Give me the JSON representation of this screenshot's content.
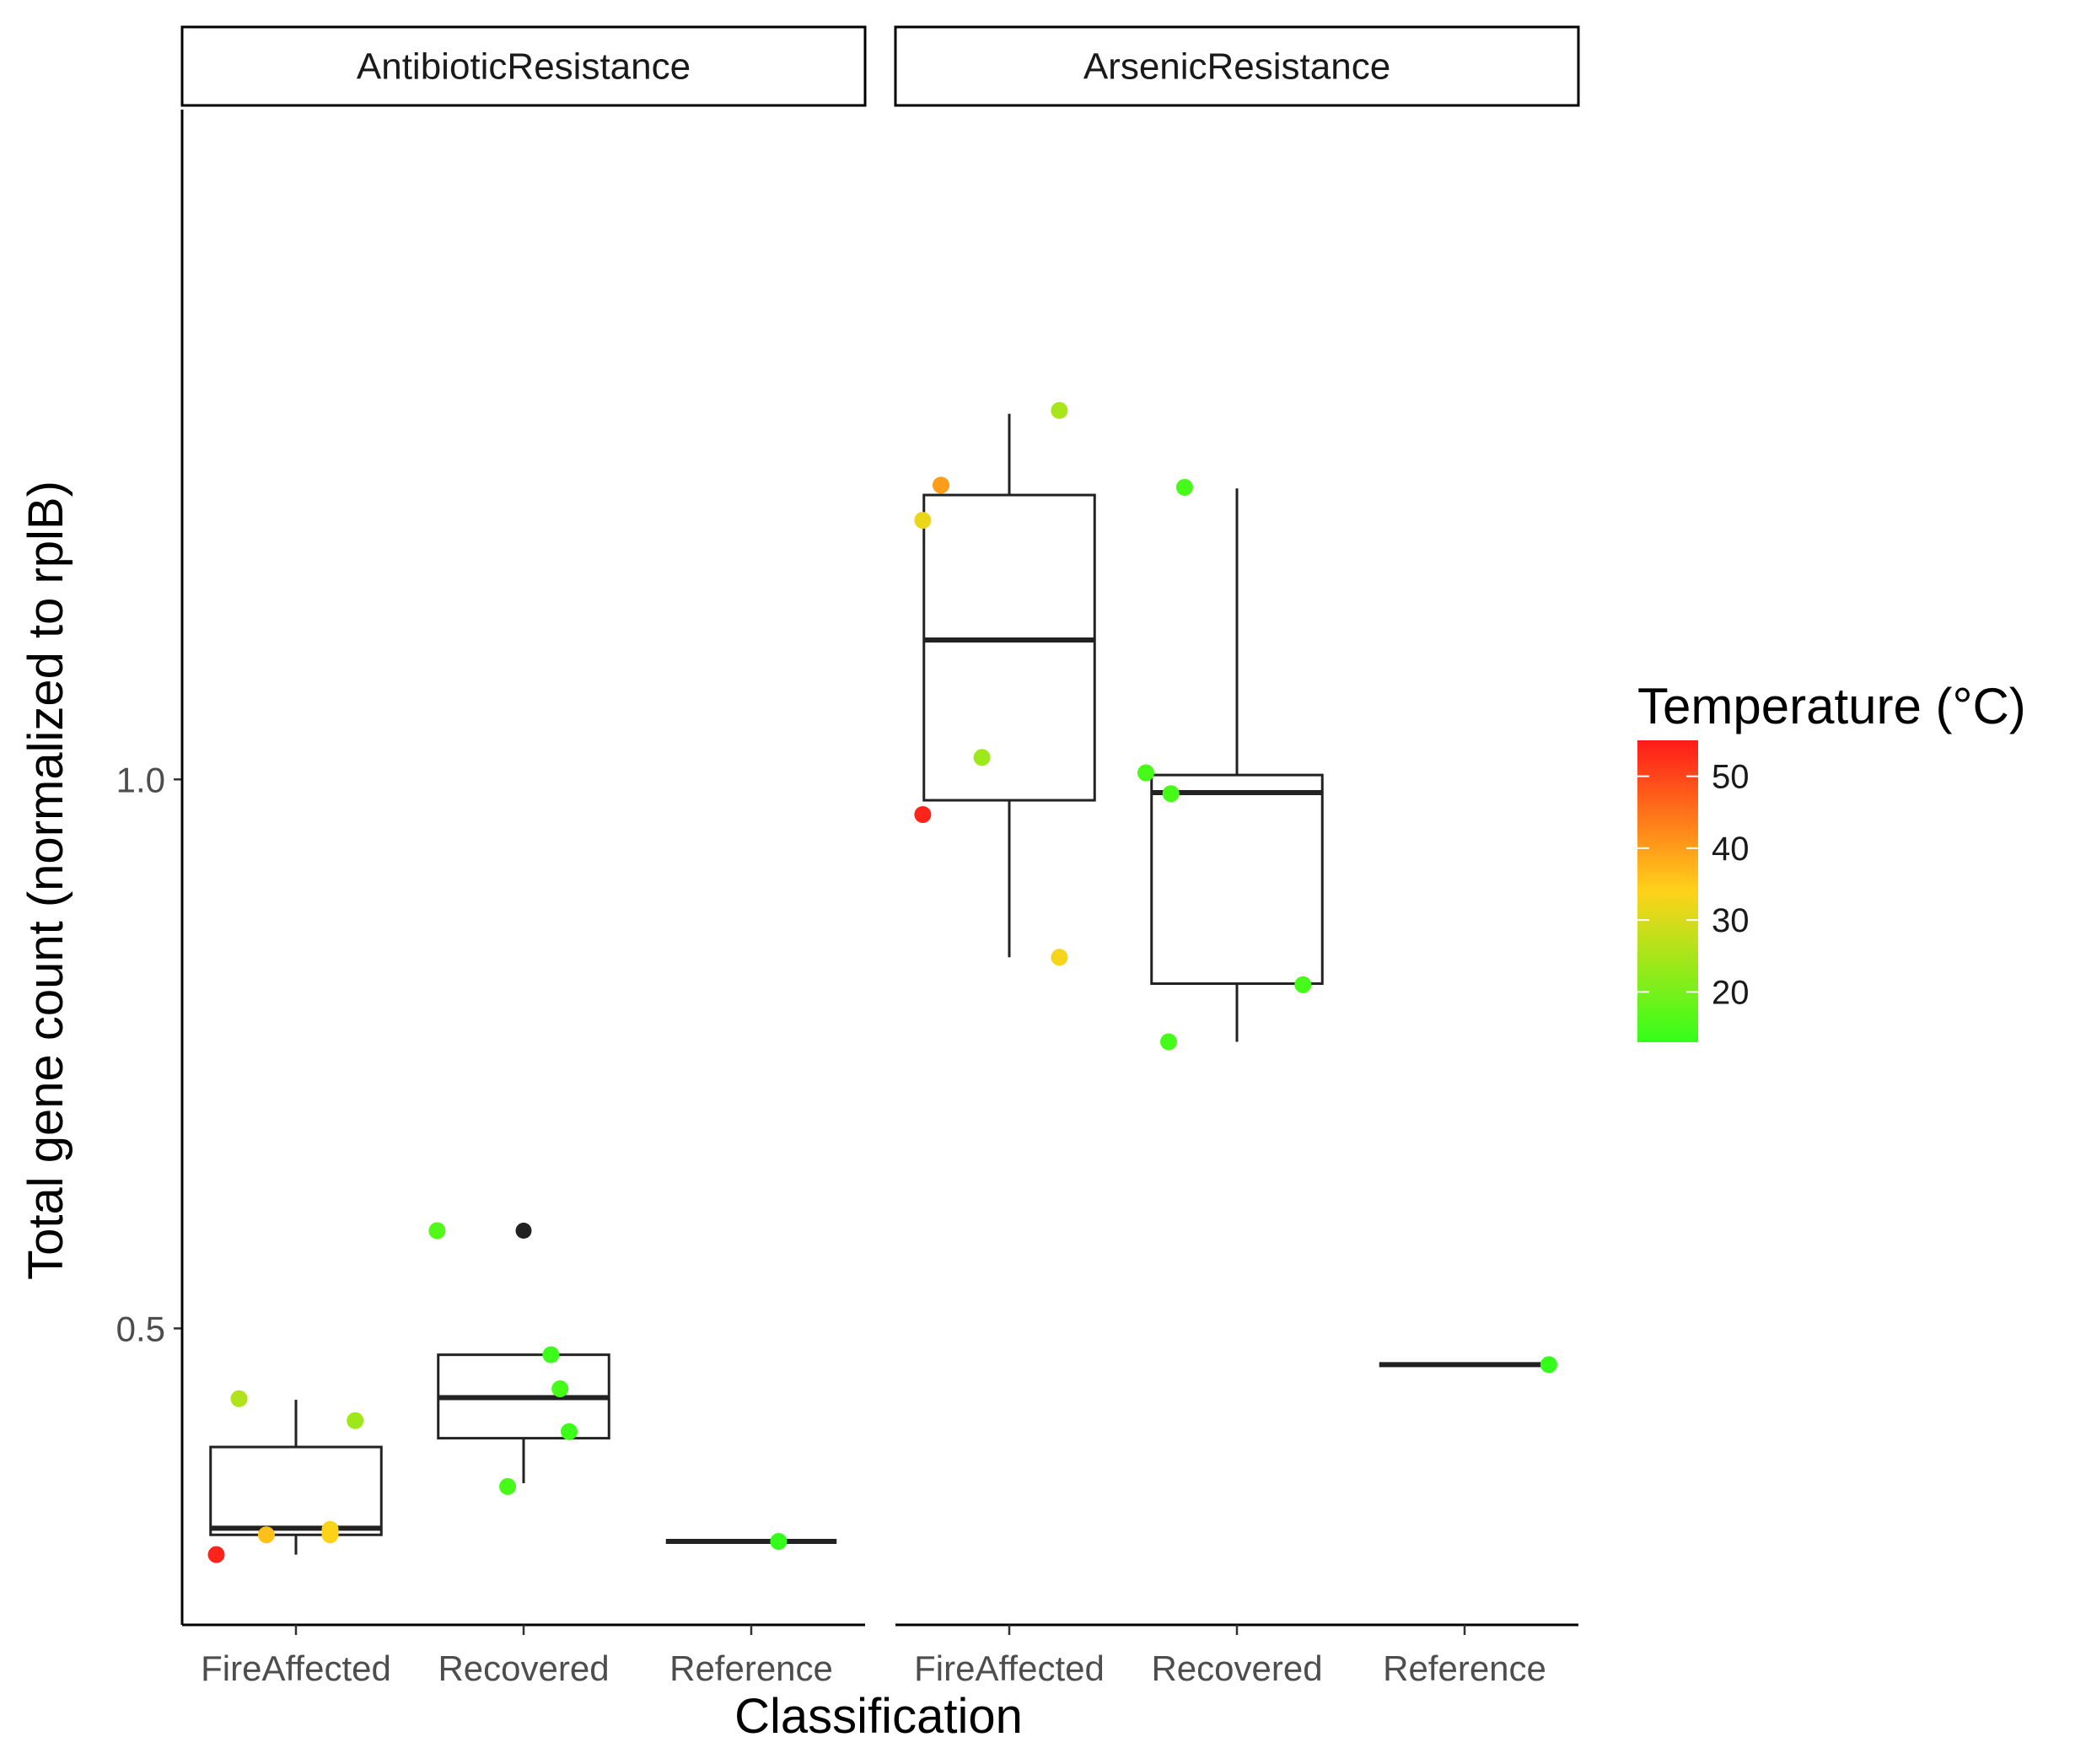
{
  "chart_data": {
    "type": "boxplot",
    "xlabel": "Classification",
    "ylabel": "Total gene count (normalized to rplB)",
    "y_ticks": [
      "0.5",
      "1.0"
    ],
    "ylim": [
      0.23,
      1.61
    ],
    "categories": [
      "FireAffected",
      "Recovered",
      "Reference"
    ],
    "colorbar": {
      "title": "Temperature (°C)",
      "ticks": [
        "20",
        "30",
        "40",
        "50"
      ],
      "range": [
        13,
        55
      ],
      "colors": [
        "#33ff1a",
        "#ffd21a",
        "#ff1a1a"
      ]
    },
    "outlier_color": "#222222",
    "facets": [
      {
        "label": "AntibioticResistance",
        "boxes": [
          {
            "category": "FireAffected",
            "whisker_low": 0.294,
            "q1": 0.312,
            "median": 0.318,
            "q3": 0.392,
            "whisker_high": 0.435
          },
          {
            "category": "Recovered",
            "whisker_low": 0.359,
            "q1": 0.4,
            "median": 0.437,
            "q3": 0.476,
            "whisker_high": 0.476,
            "outliers": [
              0.589
            ]
          },
          {
            "category": "Reference",
            "whisker_low": 0.306,
            "q1": 0.306,
            "median": 0.306,
            "q3": 0.306,
            "whisker_high": 0.306
          }
        ],
        "points": [
          {
            "category": "FireAffected",
            "offset": -0.35,
            "y": 0.294,
            "temp": 54
          },
          {
            "category": "FireAffected",
            "offset": -0.25,
            "y": 0.436,
            "temp": 26
          },
          {
            "category": "FireAffected",
            "offset": -0.13,
            "y": 0.312,
            "temp": 36
          },
          {
            "category": "FireAffected",
            "offset": 0.15,
            "y": 0.317,
            "temp": 33
          },
          {
            "category": "FireAffected",
            "offset": 0.15,
            "y": 0.312,
            "temp": 34
          },
          {
            "category": "FireAffected",
            "offset": 0.26,
            "y": 0.416,
            "temp": 24
          },
          {
            "category": "Recovered",
            "offset": -0.38,
            "y": 0.589,
            "temp": 16
          },
          {
            "category": "Recovered",
            "offset": -0.07,
            "y": 0.356,
            "temp": 15
          },
          {
            "category": "Recovered",
            "offset": 0.12,
            "y": 0.476,
            "temp": 14
          },
          {
            "category": "Recovered",
            "offset": 0.16,
            "y": 0.445,
            "temp": 15
          },
          {
            "category": "Recovered",
            "offset": 0.2,
            "y": 0.406,
            "temp": 14
          },
          {
            "category": "Reference",
            "offset": 0.12,
            "y": 0.306,
            "temp": 13
          }
        ]
      },
      {
        "label": "ArsenicResistance",
        "boxes": [
          {
            "category": "FireAffected",
            "whisker_low": 0.838,
            "q1": 0.981,
            "median": 1.127,
            "q3": 1.259,
            "whisker_high": 1.333
          },
          {
            "category": "Recovered",
            "whisker_low": 0.761,
            "q1": 0.814,
            "median": 0.988,
            "q3": 1.004,
            "whisker_high": 1.265
          },
          {
            "category": "Reference",
            "whisker_low": 0.467,
            "q1": 0.467,
            "median": 0.467,
            "q3": 0.467,
            "whisker_high": 0.467
          }
        ],
        "points": [
          {
            "category": "FireAffected",
            "offset": -0.38,
            "y": 0.968,
            "temp": 54
          },
          {
            "category": "FireAffected",
            "offset": -0.38,
            "y": 1.236,
            "temp": 32
          },
          {
            "category": "FireAffected",
            "offset": -0.3,
            "y": 1.268,
            "temp": 40
          },
          {
            "category": "FireAffected",
            "offset": -0.12,
            "y": 1.02,
            "temp": 24
          },
          {
            "category": "FireAffected",
            "offset": 0.22,
            "y": 1.336,
            "temp": 25
          },
          {
            "category": "FireAffected",
            "offset": 0.22,
            "y": 0.838,
            "temp": 33
          },
          {
            "category": "Recovered",
            "offset": -0.4,
            "y": 1.006,
            "temp": 15
          },
          {
            "category": "Recovered",
            "offset": -0.29,
            "y": 0.987,
            "temp": 15
          },
          {
            "category": "Recovered",
            "offset": -0.3,
            "y": 0.761,
            "temp": 15
          },
          {
            "category": "Recovered",
            "offset": -0.23,
            "y": 1.266,
            "temp": 15
          },
          {
            "category": "Recovered",
            "offset": 0.29,
            "y": 0.813,
            "temp": 15
          },
          {
            "category": "Reference",
            "offset": 0.37,
            "y": 0.467,
            "temp": 13
          }
        ]
      }
    ]
  }
}
